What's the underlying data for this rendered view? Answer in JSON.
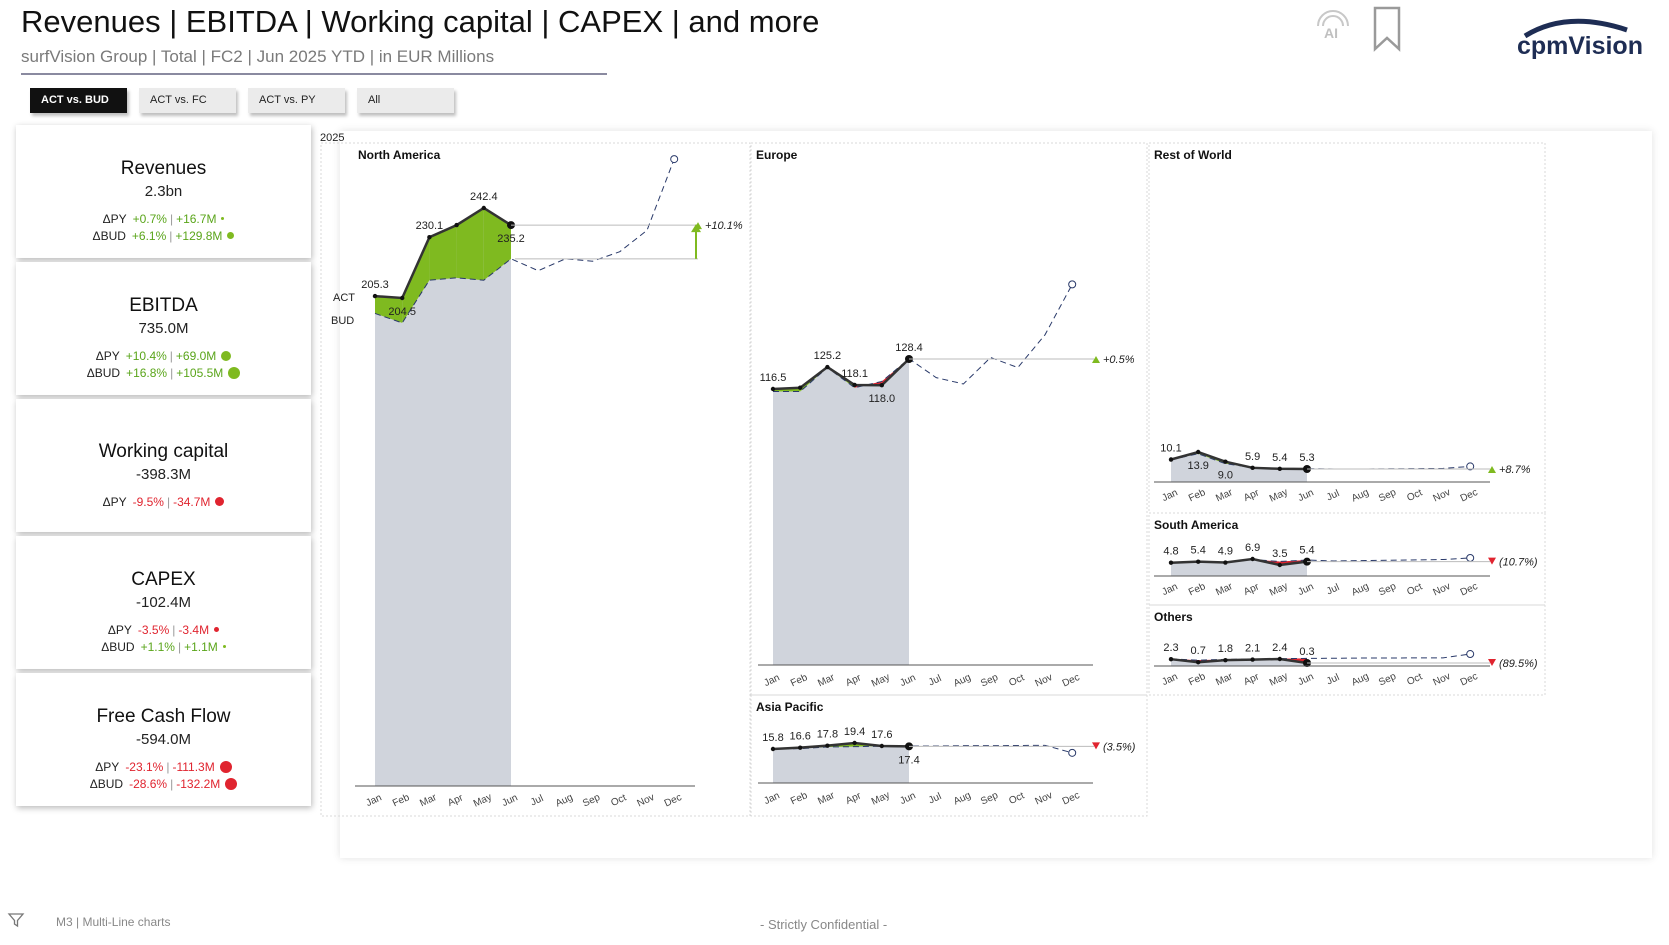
{
  "header": {
    "title": "Revenues | EBITDA | Working capital | CAPEX | and more",
    "subtitle": "surfVision Group | Total | FC2 | Jun 2025 YTD | in EUR Millions",
    "ai_label": "AI",
    "logo_text": "cpmVision"
  },
  "tabs": [
    {
      "label": "ACT vs. BUD",
      "active": true
    },
    {
      "label": "ACT vs. FC",
      "active": false
    },
    {
      "label": "ACT vs. PY",
      "active": false
    },
    {
      "label": "All",
      "active": false
    }
  ],
  "kpis": [
    {
      "title": "Revenues",
      "value": "2.3bn",
      "rows": [
        {
          "label": "ΔPY",
          "pct": "+0.7%",
          "abs": "+16.7M",
          "sign": "pos",
          "marker": "tiny"
        },
        {
          "label": "ΔBUD",
          "pct": "+6.1%",
          "abs": "+129.8M",
          "sign": "pos",
          "marker": "small"
        }
      ]
    },
    {
      "title": "EBITDA",
      "value": "735.0M",
      "rows": [
        {
          "label": "ΔPY",
          "pct": "+10.4%",
          "abs": "+69.0M",
          "sign": "pos",
          "marker": "arrow"
        },
        {
          "label": "ΔBUD",
          "pct": "+16.8%",
          "abs": "+105.5M",
          "sign": "pos",
          "marker": "arrow"
        }
      ]
    },
    {
      "title": "Working capital",
      "value": "-398.3M",
      "rows": [
        {
          "label": "ΔPY",
          "pct": "-9.5%",
          "abs": "-34.7M",
          "sign": "neg",
          "marker": "arrow"
        }
      ]
    },
    {
      "title": "CAPEX",
      "value": "-102.4M",
      "rows": [
        {
          "label": "ΔPY",
          "pct": "-3.5%",
          "abs": "-3.4M",
          "sign": "neg",
          "marker": "small"
        },
        {
          "label": "ΔBUD",
          "pct": "+1.1%",
          "abs": "+1.1M",
          "sign": "pos",
          "marker": "tiny"
        }
      ]
    },
    {
      "title": "Free Cash Flow",
      "value": "-594.0M",
      "rows": [
        {
          "label": "ΔPY",
          "pct": "-23.1%",
          "abs": "-111.3M",
          "sign": "neg",
          "marker": "arrow"
        },
        {
          "label": "ΔBUD",
          "pct": "-28.6%",
          "abs": "-132.2M",
          "sign": "neg",
          "marker": "arrow"
        }
      ]
    }
  ],
  "colors": {
    "positive": "#7fba20",
    "negative": "#e0242f",
    "act_area": "#d0d4dc",
    "line": "#333333",
    "dashed": "#2a3a6a"
  },
  "chart_data": {
    "type": "line",
    "year_label": "2025",
    "months": [
      "Jan",
      "Feb",
      "Mar",
      "Apr",
      "May",
      "Jun",
      "Jul",
      "Aug",
      "Sep",
      "Oct",
      "Nov",
      "Dec"
    ],
    "act_label": "ACT",
    "bud_label": "BUD",
    "regions": [
      {
        "name": "North America",
        "act": [
          205.3,
          204.5,
          230.1,
          235.2,
          242.4,
          235.2
        ],
        "labels": [
          "205.3",
          "204.5",
          "230.1",
          "",
          "242.4",
          "235.2"
        ],
        "bud": [
          198,
          194,
          212,
          213,
          212,
          221,
          216,
          221,
          220,
          224,
          233,
          263
        ],
        "delta": "+10.1%",
        "delta_sign": "pos"
      },
      {
        "name": "Europe",
        "act": [
          116.5,
          117.0,
          125.2,
          118.1,
          118.0,
          128.4
        ],
        "labels": [
          "116.5",
          "",
          "125.2",
          "118.1",
          "118.0",
          "128.4"
        ],
        "bud": [
          115.5,
          115.5,
          125.0,
          117.0,
          119.5,
          128.5,
          121,
          118.5,
          129,
          125,
          138,
          158
        ],
        "delta": "+0.5%",
        "delta_sign": "pos"
      },
      {
        "name": "Rest of World",
        "act": [
          10.1,
          13.9,
          9.0,
          5.9,
          5.4,
          5.3
        ],
        "labels": [
          "10.1",
          "13.9",
          "9.0",
          "5.9",
          "5.4",
          "5.3"
        ],
        "bud": [
          10,
          13,
          8,
          6,
          5.5,
          5.5,
          5.3,
          5.3,
          5.4,
          5.5,
          5.6,
          6.6
        ],
        "delta": "+8.7%",
        "delta_sign": "pos"
      },
      {
        "name": "South America",
        "act": [
          4.8,
          5.4,
          4.9,
          6.9,
          3.5,
          5.4
        ],
        "labels": [
          "4.8",
          "5.4",
          "4.9",
          "6.9",
          "3.5",
          "5.4"
        ],
        "bud": [
          4.8,
          5.3,
          4.8,
          6.6,
          5.5,
          6.3,
          5.8,
          6.0,
          6.2,
          6.4,
          6.6,
          7.5
        ],
        "delta": "(10.7%)",
        "delta_sign": "neg"
      },
      {
        "name": "Others",
        "act": [
          2.3,
          0.7,
          1.8,
          2.1,
          2.4,
          0.3
        ],
        "labels": [
          "2.3",
          "0.7",
          "1.8",
          "2.1",
          "2.4",
          "0.3"
        ],
        "bud": [
          2.4,
          1.8,
          2.2,
          2.3,
          2.6,
          2.7,
          2.8,
          2.9,
          2.9,
          3.0,
          3.0,
          5.0
        ],
        "delta": "(89.5%)",
        "delta_sign": "neg"
      },
      {
        "name": "Asia Pacific",
        "act": [
          15.8,
          16.6,
          17.8,
          19.4,
          17.6,
          17.4
        ],
        "labels": [
          "15.8",
          "16.6",
          "17.8",
          "19.4",
          "17.6",
          "17.4"
        ],
        "bud": [
          15.8,
          16.0,
          17.0,
          17.2,
          17.5,
          17.6,
          17.6,
          17.8,
          17.8,
          17.9,
          18.0,
          13.5
        ],
        "delta": "(3.5%)",
        "delta_sign": "neg"
      }
    ]
  },
  "footer": {
    "page_label": "M3 | Multi-Line charts",
    "confidential": "- Strictly Confidential -"
  }
}
